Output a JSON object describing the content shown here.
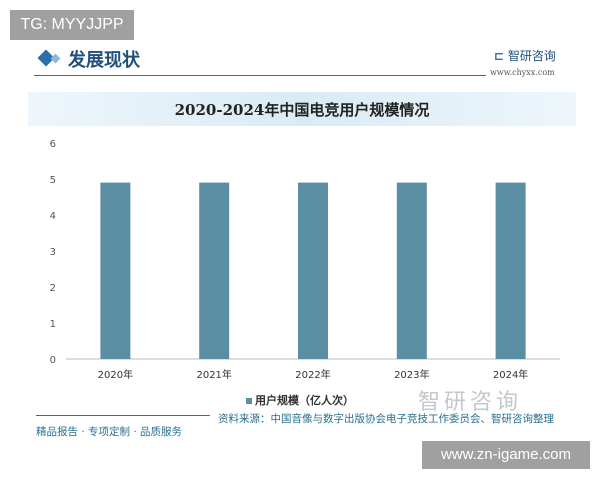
{
  "overlay_tag": "TG: MYYJJPP",
  "section_title": "发展现状",
  "brand": {
    "name": "智研咨询",
    "url": "www.chyxx.com"
  },
  "footer": {
    "source": "资料来源：中国音像与数字出版协会电子竞技工作委员会、智研咨询整理",
    "tagline": "精品报告 · 专项定制 · 品质服务",
    "watermark": "智研咨询",
    "site_overlay": "www.zn-igame.com"
  },
  "chart_data": {
    "type": "bar",
    "title": "2020-2024年中国电竞用户规模情况",
    "categories": [
      "2020年",
      "2021年",
      "2022年",
      "2023年",
      "2024年"
    ],
    "series": [
      {
        "name": "用户规模（亿人次）",
        "values": [
          4.9,
          4.9,
          4.9,
          4.9,
          4.9
        ],
        "color": "#5a8fa3"
      }
    ],
    "ylim": [
      0,
      6
    ],
    "yticks": [
      "0",
      "1",
      "2",
      "3",
      "4",
      "5",
      "6"
    ],
    "grid": false,
    "legend": "bottom"
  }
}
